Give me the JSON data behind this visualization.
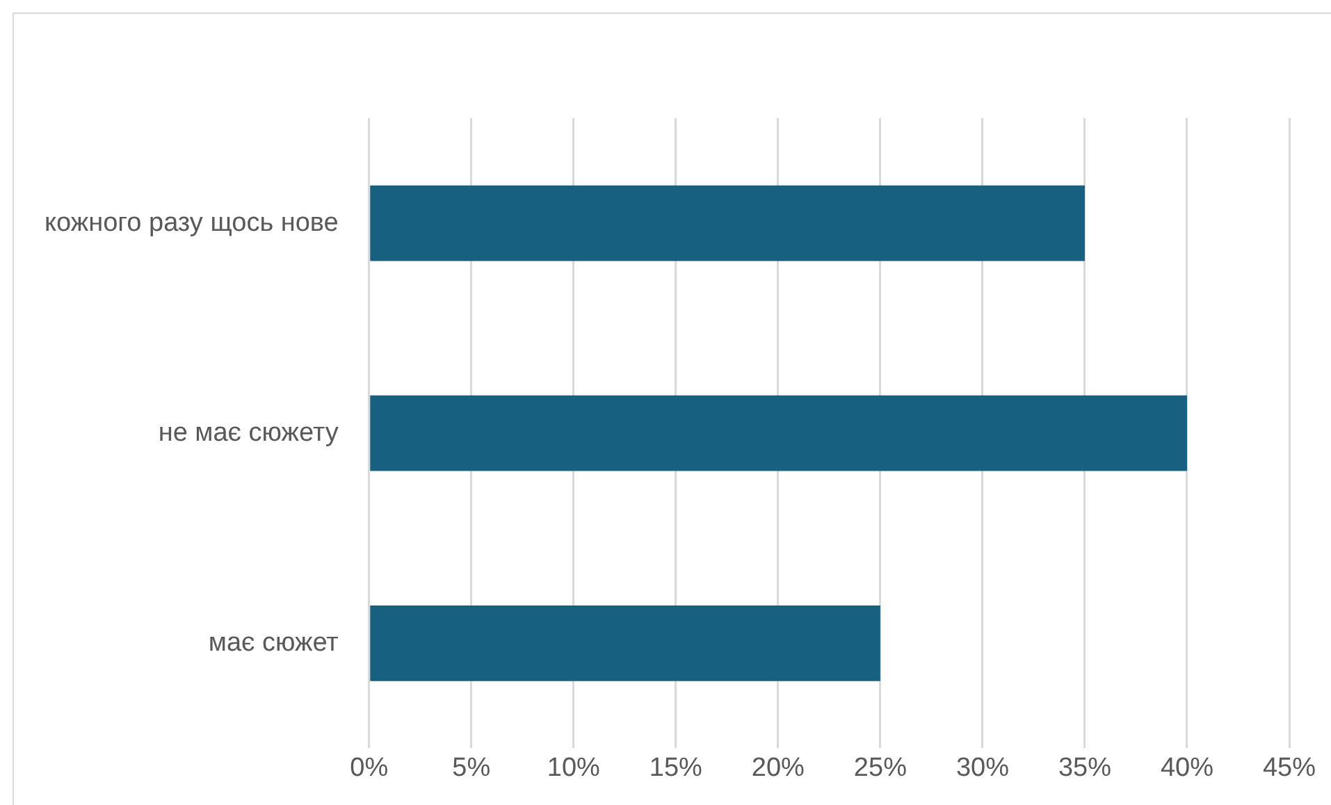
{
  "chart_data": {
    "type": "bar",
    "orientation": "horizontal",
    "categories": [
      "кожного разу щось нове",
      "не має сюжету",
      "має сюжет"
    ],
    "values": [
      35,
      40,
      25
    ],
    "color": "#17607f",
    "xlim": [
      0,
      45
    ],
    "xticks": [
      {
        "value": 0,
        "label": "0%"
      },
      {
        "value": 5,
        "label": "5%"
      },
      {
        "value": 10,
        "label": "10%"
      },
      {
        "value": 15,
        "label": "15%"
      },
      {
        "value": 20,
        "label": "20%"
      },
      {
        "value": 25,
        "label": "25%"
      },
      {
        "value": 30,
        "label": "30%"
      },
      {
        "value": 35,
        "label": "35%"
      },
      {
        "value": 40,
        "label": "40%"
      },
      {
        "value": 45,
        "label": "45%"
      }
    ],
    "grid": "x",
    "legend": false
  }
}
